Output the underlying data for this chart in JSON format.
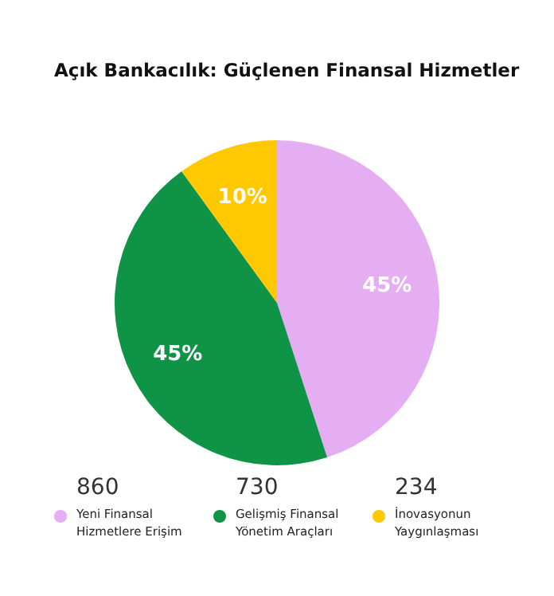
{
  "chart_data": {
    "type": "pie",
    "title": "Açık Bankacılık: Güçlenen Finansal Hizmetler",
    "categories": [
      "Yeni Finansal Hizmetlere Erişim",
      "Gelişmiş Finansal Yönetim Araçları",
      "İnovasyonun Yaygınlaşması"
    ],
    "values": [
      45,
      45,
      10
    ],
    "value_labels": [
      "45%",
      "45%",
      "10%"
    ],
    "colors": [
      "#e6aef2",
      "#0f9447",
      "#ffc800"
    ],
    "annotations": [
      "860",
      "730",
      "234"
    ],
    "legend": "bottom"
  }
}
